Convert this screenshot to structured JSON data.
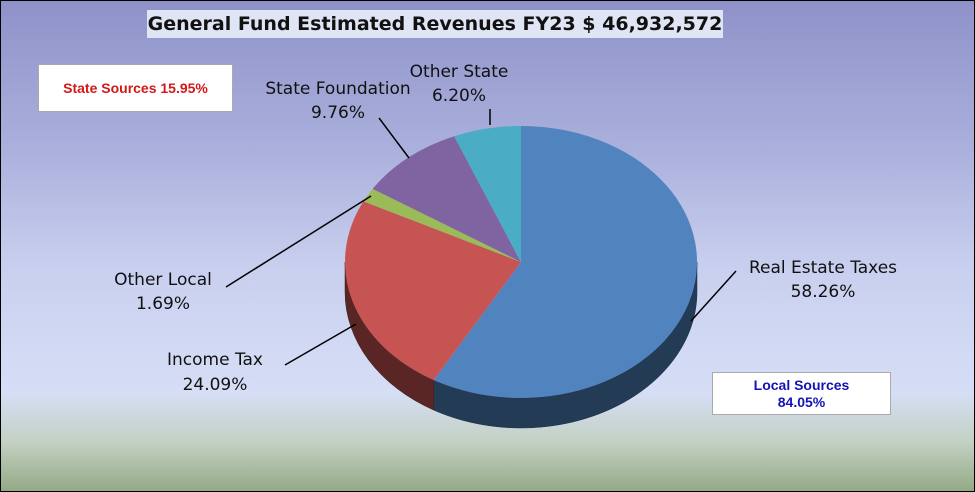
{
  "chart_data": {
    "type": "pie",
    "title": "General Fund Estimated Revenues FY23 $ 46,932,572",
    "slices": [
      {
        "label": "Real Estate Taxes",
        "value": 58.26,
        "value_label": "58.26%",
        "color": "#5183bf"
      },
      {
        "label": "Income Tax",
        "value": 24.09,
        "value_label": "24.09%",
        "color": "#c65452"
      },
      {
        "label": "Other Local",
        "value": 1.69,
        "value_label": "1.69%",
        "color": "#9bbb58"
      },
      {
        "label": "State Foundation",
        "value": 9.76,
        "value_label": "9.76%",
        "color": "#8064a2"
      },
      {
        "label": "Other State",
        "value": 6.2,
        "value_label": "6.20%",
        "color": "#4bacc6"
      }
    ],
    "annotations": {
      "state_sources": "State Sources 15.95%",
      "local_sources_label": "Local Sources",
      "local_sources_value": "84.05%"
    }
  }
}
